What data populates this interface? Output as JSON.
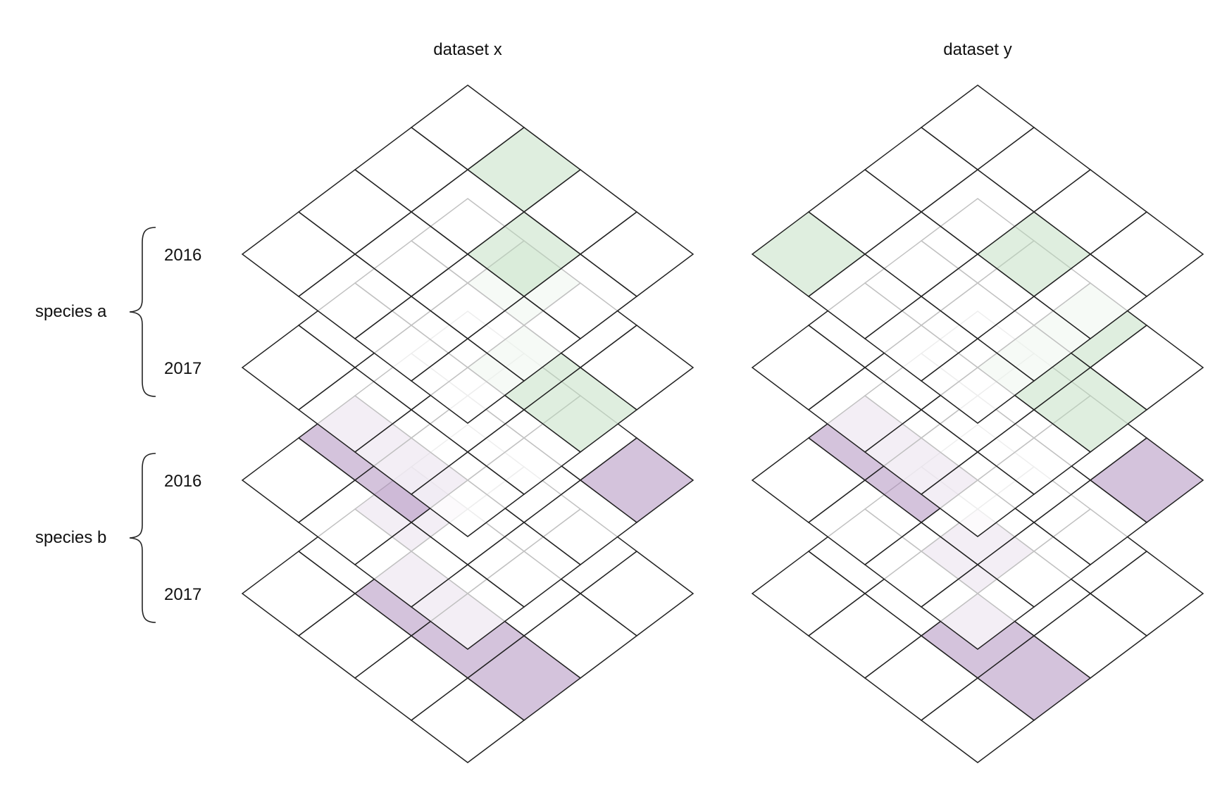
{
  "columns": [
    {
      "id": "x",
      "label": "dataset x"
    },
    {
      "id": "y",
      "label": "dataset y"
    }
  ],
  "groups": [
    {
      "label": "species a",
      "layers": [
        {
          "label": "2016"
        },
        {
          "label": "2017"
        }
      ]
    },
    {
      "label": "species b",
      "layers": [
        {
          "label": "2016"
        },
        {
          "label": "2017"
        }
      ]
    }
  ],
  "grid_size": 4,
  "colors": {
    "species a": "#d9ebd9",
    "species b": "#cdb8d6",
    "cell_fill": "#ffffff",
    "stroke": "#222222"
  },
  "chart_data": {
    "type": "heatmap",
    "description_of_cells": "Each layer is a 4x4 grid; highlighted cells listed as [row, col] with row counted from the top-right edge, col from the top-left edge.",
    "layers": [
      {
        "dataset": "dataset x",
        "species": "species a",
        "year": "2016",
        "highlighted": [
          [
            1,
            0
          ],
          [
            2,
            1
          ]
        ]
      },
      {
        "dataset": "dataset x",
        "species": "species a",
        "year": "2017",
        "highlighted": [
          [
            1,
            0
          ],
          [
            2,
            1
          ],
          [
            3,
            1
          ]
        ]
      },
      {
        "dataset": "dataset x",
        "species": "species b",
        "year": "2016",
        "highlighted": [
          [
            0,
            2
          ],
          [
            1,
            2
          ],
          [
            3,
            0
          ]
        ]
      },
      {
        "dataset": "dataset x",
        "species": "species b",
        "year": "2017",
        "highlighted": [
          [
            0,
            1
          ],
          [
            1,
            2
          ],
          [
            2,
            2
          ],
          [
            3,
            2
          ]
        ]
      },
      {
        "dataset": "dataset y",
        "species": "species a",
        "year": "2016",
        "highlighted": [
          [
            0,
            3
          ],
          [
            2,
            1
          ]
        ]
      },
      {
        "dataset": "dataset y",
        "species": "species a",
        "year": "2017",
        "highlighted": [
          [
            2,
            0
          ],
          [
            2,
            1
          ],
          [
            3,
            1
          ]
        ]
      },
      {
        "dataset": "dataset y",
        "species": "species b",
        "year": "2016",
        "highlighted": [
          [
            0,
            2
          ],
          [
            1,
            2
          ],
          [
            3,
            0
          ]
        ]
      },
      {
        "dataset": "dataset y",
        "species": "species b",
        "year": "2017",
        "highlighted": [
          [
            1,
            1
          ],
          [
            2,
            2
          ],
          [
            3,
            2
          ]
        ]
      }
    ]
  }
}
